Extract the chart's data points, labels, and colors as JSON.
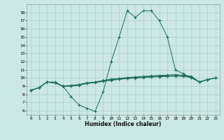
{
  "xlabel": "Humidex (Indice chaleur)",
  "xlim": [
    -0.5,
    23.5
  ],
  "ylim": [
    5.5,
    19.0
  ],
  "yticks": [
    6,
    7,
    8,
    9,
    10,
    11,
    12,
    13,
    14,
    15,
    16,
    17,
    18
  ],
  "xticks": [
    0,
    1,
    2,
    3,
    4,
    5,
    6,
    7,
    8,
    9,
    10,
    11,
    12,
    13,
    14,
    15,
    16,
    17,
    18,
    19,
    20,
    21,
    22,
    23
  ],
  "bg_color": "#cce8e4",
  "line_color": "#1a6b5a",
  "grid_color": "#aacfca",
  "series": [
    [
      8.5,
      8.8,
      9.5,
      9.5,
      9.0,
      7.7,
      6.7,
      6.3,
      5.9,
      8.3,
      12.0,
      15.0,
      18.2,
      17.4,
      18.2,
      18.2,
      17.0,
      15.0,
      11.0,
      10.5,
      10.0,
      9.5,
      9.8,
      10.0
    ],
    [
      8.5,
      8.8,
      9.5,
      9.4,
      9.0,
      9.1,
      9.2,
      9.4,
      9.5,
      9.7,
      9.85,
      9.95,
      10.05,
      10.12,
      10.18,
      10.25,
      10.3,
      10.35,
      10.4,
      10.35,
      10.2,
      9.5,
      9.8,
      10.0
    ],
    [
      8.5,
      8.8,
      9.5,
      9.4,
      9.0,
      9.0,
      9.15,
      9.38,
      9.48,
      9.65,
      9.78,
      9.88,
      9.98,
      10.05,
      10.12,
      10.18,
      10.22,
      10.26,
      10.3,
      10.26,
      10.1,
      9.5,
      9.8,
      10.0
    ],
    [
      8.5,
      8.8,
      9.5,
      9.4,
      9.0,
      9.0,
      9.1,
      9.32,
      9.42,
      9.58,
      9.72,
      9.82,
      9.92,
      9.98,
      10.05,
      10.1,
      10.15,
      10.18,
      10.22,
      10.18,
      10.05,
      9.5,
      9.8,
      10.0
    ]
  ]
}
